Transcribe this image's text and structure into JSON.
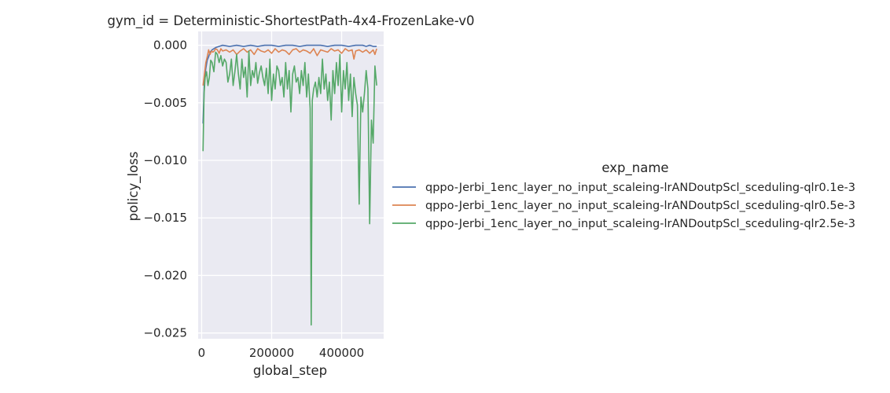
{
  "chart_data": {
    "type": "line",
    "title": "gym_id = Deterministic-ShortestPath-4x4-FrozenLake-v0",
    "xlabel": "global_step",
    "ylabel": "policy_loss",
    "xlim": [
      -10000,
      520000
    ],
    "ylim": [
      -0.0255,
      0.0012
    ],
    "xticks": [
      0,
      200000,
      400000
    ],
    "xtick_labels": [
      "0",
      "200000",
      "400000"
    ],
    "yticks": [
      0.0,
      -0.005,
      -0.01,
      -0.015,
      -0.02,
      -0.025
    ],
    "ytick_labels": [
      "0.000",
      "−0.005",
      "−0.010",
      "−0.015",
      "−0.020",
      "−0.025"
    ],
    "grid": true,
    "background": "#eaeaf2",
    "legend": {
      "title": "exp_name",
      "position": "right"
    },
    "series": [
      {
        "name": "qppo-Jerbi_1enc_layer_no_input_scaleing-lrANDoutpScl_sceduling-qlr0.1e-3",
        "color": "#4c72b0",
        "x": [
          4000,
          8000,
          12000,
          16000,
          20000,
          24000,
          30000,
          40000,
          50000,
          60000,
          80000,
          100000,
          120000,
          140000,
          160000,
          180000,
          200000,
          220000,
          240000,
          260000,
          280000,
          300000,
          320000,
          340000,
          360000,
          380000,
          400000,
          420000,
          440000,
          460000,
          470000,
          480000,
          490000,
          500000
        ],
        "y": [
          -0.0068,
          -0.003,
          -0.002,
          -0.0013,
          -0.001,
          -0.0006,
          -0.0004,
          -0.0002,
          -0.0001,
          0.0,
          -0.0001,
          0.0,
          -0.0001,
          0.0,
          -0.0001,
          0.0,
          0.0,
          -0.0001,
          0.0,
          0.0,
          -0.0001,
          0.0,
          0.0,
          0.0,
          -0.0001,
          0.0,
          0.0,
          -0.0001,
          0.0,
          0.0,
          -0.0001,
          0.0,
          -0.0001,
          -0.0001
        ]
      },
      {
        "name": "qppo-Jerbi_1enc_layer_no_input_scaleing-lrANDoutpScl_sceduling-qlr0.5e-3",
        "color": "#dd8452",
        "x": [
          4000,
          8000,
          12000,
          16000,
          20000,
          24000,
          28000,
          32000,
          36000,
          40000,
          45000,
          50000,
          55000,
          60000,
          70000,
          80000,
          90000,
          100000,
          110000,
          120000,
          130000,
          140000,
          150000,
          160000,
          170000,
          180000,
          190000,
          200000,
          210000,
          220000,
          230000,
          240000,
          250000,
          260000,
          270000,
          280000,
          290000,
          300000,
          310000,
          320000,
          330000,
          340000,
          350000,
          360000,
          370000,
          380000,
          390000,
          400000,
          410000,
          420000,
          430000,
          435000,
          440000,
          450000,
          460000,
          470000,
          480000,
          490000,
          495000,
          500000
        ],
        "y": [
          -0.0035,
          -0.0025,
          -0.0015,
          -0.001,
          -0.0004,
          -0.0008,
          -0.0005,
          -0.0006,
          -0.0005,
          -0.0003,
          -0.0004,
          -0.0007,
          -0.0003,
          -0.0005,
          -0.0004,
          -0.0006,
          -0.0004,
          -0.0008,
          -0.0005,
          -0.0003,
          -0.0006,
          -0.0004,
          -0.0008,
          -0.0003,
          -0.0005,
          -0.0006,
          -0.0004,
          -0.0007,
          -0.0003,
          -0.0006,
          -0.0004,
          -0.0005,
          -0.0008,
          -0.0004,
          -0.0003,
          -0.0006,
          -0.0004,
          -0.0005,
          -0.0007,
          -0.0003,
          -0.0009,
          -0.0004,
          -0.0005,
          -0.0006,
          -0.0003,
          -0.0005,
          -0.0004,
          -0.0007,
          -0.0003,
          -0.0005,
          -0.0004,
          -0.0012,
          -0.0005,
          -0.0004,
          -0.0006,
          -0.0004,
          -0.0007,
          -0.0004,
          -0.0008,
          -0.0003
        ]
      },
      {
        "name": "qppo-Jerbi_1enc_layer_no_input_scaleing-lrANDoutpScl_sceduling-qlr2.5e-3",
        "color": "#55a868",
        "x": [
          4000,
          7000,
          10000,
          14000,
          18000,
          22000,
          26000,
          30000,
          35000,
          40000,
          45000,
          50000,
          55000,
          60000,
          65000,
          70000,
          75000,
          80000,
          85000,
          90000,
          95000,
          100000,
          105000,
          110000,
          115000,
          120000,
          125000,
          130000,
          135000,
          140000,
          145000,
          150000,
          155000,
          160000,
          165000,
          170000,
          175000,
          180000,
          185000,
          190000,
          195000,
          200000,
          205000,
          210000,
          215000,
          220000,
          225000,
          230000,
          235000,
          240000,
          245000,
          250000,
          255000,
          260000,
          265000,
          270000,
          275000,
          280000,
          285000,
          290000,
          295000,
          300000,
          305000,
          310000,
          313000,
          316000,
          320000,
          325000,
          330000,
          335000,
          340000,
          345000,
          350000,
          355000,
          360000,
          365000,
          370000,
          375000,
          380000,
          385000,
          390000,
          395000,
          400000,
          405000,
          410000,
          415000,
          420000,
          425000,
          430000,
          435000,
          440000,
          445000,
          450000,
          455000,
          460000,
          465000,
          470000,
          475000,
          480000,
          485000,
          490000,
          495000,
          500000
        ],
        "y": [
          -0.0092,
          -0.0042,
          -0.0028,
          -0.0023,
          -0.0035,
          -0.0028,
          -0.0013,
          -0.0015,
          -0.0023,
          -0.0006,
          -0.0008,
          -0.0015,
          -0.0009,
          -0.0018,
          -0.0012,
          -0.0015,
          -0.0032,
          -0.0025,
          -0.0012,
          -0.0035,
          -0.0023,
          -0.0008,
          -0.0025,
          -0.0038,
          -0.0012,
          -0.0028,
          -0.0019,
          -0.0045,
          -0.0005,
          -0.0035,
          -0.0022,
          -0.0028,
          -0.0015,
          -0.0033,
          -0.0024,
          -0.0018,
          -0.0028,
          -0.0035,
          -0.002,
          -0.0042,
          -0.0012,
          -0.0048,
          -0.0025,
          -0.0038,
          -0.0018,
          -0.0022,
          -0.0035,
          -0.0028,
          -0.0045,
          -0.0015,
          -0.0038,
          -0.0022,
          -0.0058,
          -0.0025,
          -0.0018,
          -0.0032,
          -0.0028,
          -0.0042,
          -0.0022,
          -0.0035,
          -0.0015,
          -0.0045,
          -0.0025,
          -0.0055,
          -0.0243,
          -0.0048,
          -0.0038,
          -0.0032,
          -0.0045,
          -0.0028,
          -0.0042,
          -0.0012,
          -0.0038,
          -0.0025,
          -0.0048,
          -0.0032,
          -0.0065,
          -0.0022,
          -0.0042,
          -0.0015,
          -0.0035,
          -0.0008,
          -0.0058,
          -0.0022,
          -0.0038,
          -0.0015,
          -0.0048,
          -0.0025,
          -0.0062,
          -0.0028,
          -0.0042,
          -0.0052,
          -0.0138,
          -0.0045,
          -0.0058,
          -0.0042,
          -0.0022,
          -0.0038,
          -0.0155,
          -0.0065,
          -0.0085,
          -0.0018,
          -0.0035
        ]
      }
    ]
  }
}
